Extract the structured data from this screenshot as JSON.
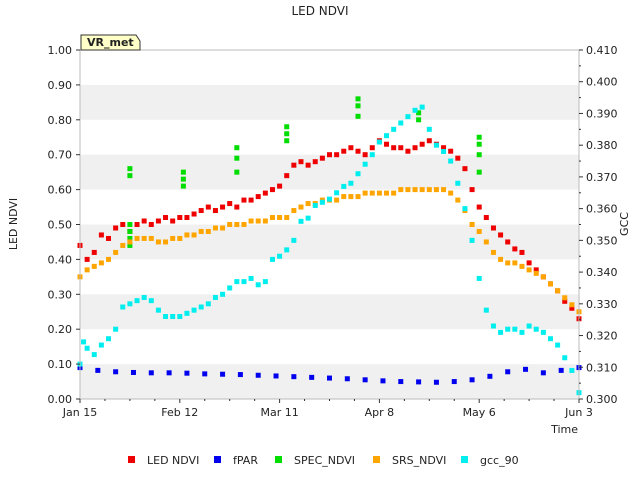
{
  "chart_data": {
    "type": "scatter",
    "title": "LED NDVI",
    "xlabel": "Time",
    "ylabel_left": "LED NDVI",
    "ylabel_right": "GCC",
    "site_label": "VR_met",
    "ylim_left": [
      0.0,
      1.0
    ],
    "ylim_right": [
      0.3,
      0.41
    ],
    "yticks_left": [
      "0.00",
      "0.10",
      "0.20",
      "0.30",
      "0.40",
      "0.50",
      "0.60",
      "0.70",
      "0.80",
      "0.90",
      "1.00"
    ],
    "yticks_right": [
      "0.300",
      "0.310",
      "0.320",
      "0.330",
      "0.340",
      "0.350",
      "0.360",
      "0.370",
      "0.380",
      "0.390",
      "0.400",
      "0.410"
    ],
    "x_range_days": [
      0,
      140
    ],
    "xticks": [
      {
        "label": "Jan 15",
        "day": 0
      },
      {
        "label": "Feb 12",
        "day": 28
      },
      {
        "label": "Mar 11",
        "day": 56
      },
      {
        "label": "Apr 8",
        "day": 84
      },
      {
        "label": "May 6",
        "day": 112
      },
      {
        "label": "Jun 3",
        "day": 140
      }
    ],
    "grid": "alternating horizontal bands",
    "legend_position": "bottom",
    "series": [
      {
        "name": "LED NDVI",
        "color": "#ee0000",
        "axis": "left",
        "points": [
          [
            0,
            0.44
          ],
          [
            2,
            0.4
          ],
          [
            4,
            0.42
          ],
          [
            6,
            0.47
          ],
          [
            8,
            0.46
          ],
          [
            10,
            0.49
          ],
          [
            12,
            0.5
          ],
          [
            14,
            0.48
          ],
          [
            16,
            0.5
          ],
          [
            18,
            0.51
          ],
          [
            20,
            0.5
          ],
          [
            22,
            0.51
          ],
          [
            24,
            0.52
          ],
          [
            26,
            0.51
          ],
          [
            28,
            0.52
          ],
          [
            30,
            0.52
          ],
          [
            32,
            0.53
          ],
          [
            34,
            0.54
          ],
          [
            36,
            0.55
          ],
          [
            38,
            0.54
          ],
          [
            40,
            0.55
          ],
          [
            42,
            0.56
          ],
          [
            44,
            0.55
          ],
          [
            46,
            0.57
          ],
          [
            48,
            0.57
          ],
          [
            50,
            0.58
          ],
          [
            52,
            0.59
          ],
          [
            54,
            0.6
          ],
          [
            56,
            0.61
          ],
          [
            58,
            0.64
          ],
          [
            60,
            0.67
          ],
          [
            62,
            0.68
          ],
          [
            64,
            0.67
          ],
          [
            66,
            0.68
          ],
          [
            68,
            0.69
          ],
          [
            70,
            0.7
          ],
          [
            72,
            0.7
          ],
          [
            74,
            0.71
          ],
          [
            76,
            0.72
          ],
          [
            78,
            0.71
          ],
          [
            80,
            0.7
          ],
          [
            82,
            0.72
          ],
          [
            84,
            0.74
          ],
          [
            86,
            0.73
          ],
          [
            88,
            0.72
          ],
          [
            90,
            0.72
          ],
          [
            92,
            0.71
          ],
          [
            94,
            0.72
          ],
          [
            96,
            0.73
          ],
          [
            98,
            0.74
          ],
          [
            100,
            0.73
          ],
          [
            102,
            0.72
          ],
          [
            104,
            0.71
          ],
          [
            106,
            0.69
          ],
          [
            108,
            0.66
          ],
          [
            110,
            0.6
          ],
          [
            112,
            0.55
          ],
          [
            114,
            0.52
          ],
          [
            116,
            0.49
          ],
          [
            118,
            0.47
          ],
          [
            120,
            0.45
          ],
          [
            122,
            0.43
          ],
          [
            124,
            0.42
          ],
          [
            126,
            0.39
          ],
          [
            128,
            0.37
          ],
          [
            130,
            0.35
          ],
          [
            132,
            0.33
          ],
          [
            134,
            0.31
          ],
          [
            136,
            0.28
          ],
          [
            138,
            0.26
          ],
          [
            140,
            0.23
          ]
        ]
      },
      {
        "name": "fPAR",
        "color": "#0000ee",
        "axis": "left",
        "points": [
          [
            0,
            0.09
          ],
          [
            5,
            0.082
          ],
          [
            10,
            0.078
          ],
          [
            15,
            0.076
          ],
          [
            20,
            0.075
          ],
          [
            25,
            0.075
          ],
          [
            30,
            0.074
          ],
          [
            35,
            0.072
          ],
          [
            40,
            0.071
          ],
          [
            45,
            0.07
          ],
          [
            50,
            0.068
          ],
          [
            55,
            0.066
          ],
          [
            60,
            0.064
          ],
          [
            65,
            0.062
          ],
          [
            70,
            0.06
          ],
          [
            75,
            0.058
          ],
          [
            80,
            0.055
          ],
          [
            85,
            0.052
          ],
          [
            90,
            0.05
          ],
          [
            95,
            0.049
          ],
          [
            100,
            0.048
          ],
          [
            105,
            0.05
          ],
          [
            110,
            0.055
          ],
          [
            115,
            0.065
          ],
          [
            120,
            0.078
          ],
          [
            125,
            0.085
          ],
          [
            130,
            0.075
          ],
          [
            135,
            0.082
          ],
          [
            140,
            0.09
          ]
        ]
      },
      {
        "name": "SPEC_NDVI",
        "color": "#00dd00",
        "axis": "left",
        "points": [
          [
            14,
            0.46
          ],
          [
            14,
            0.5
          ],
          [
            14,
            0.44
          ],
          [
            14,
            0.48
          ],
          [
            14,
            0.64
          ],
          [
            14,
            0.66
          ],
          [
            29,
            0.61
          ],
          [
            29,
            0.63
          ],
          [
            29,
            0.65
          ],
          [
            44,
            0.65
          ],
          [
            44,
            0.69
          ],
          [
            44,
            0.72
          ],
          [
            58,
            0.74
          ],
          [
            58,
            0.76
          ],
          [
            58,
            0.78
          ],
          [
            78,
            0.81
          ],
          [
            78,
            0.84
          ],
          [
            78,
            0.86
          ],
          [
            95,
            0.8
          ],
          [
            95,
            0.82
          ],
          [
            112,
            0.65
          ],
          [
            112,
            0.7
          ],
          [
            112,
            0.73
          ],
          [
            112,
            0.75
          ]
        ]
      },
      {
        "name": "SRS_NDVI",
        "color": "#ffa500",
        "axis": "left",
        "points": [
          [
            0,
            0.35
          ],
          [
            2,
            0.37
          ],
          [
            4,
            0.38
          ],
          [
            6,
            0.39
          ],
          [
            8,
            0.4
          ],
          [
            10,
            0.42
          ],
          [
            12,
            0.44
          ],
          [
            14,
            0.45
          ],
          [
            16,
            0.46
          ],
          [
            18,
            0.46
          ],
          [
            20,
            0.46
          ],
          [
            22,
            0.45
          ],
          [
            24,
            0.45
          ],
          [
            26,
            0.46
          ],
          [
            28,
            0.46
          ],
          [
            30,
            0.47
          ],
          [
            32,
            0.47
          ],
          [
            34,
            0.48
          ],
          [
            36,
            0.48
          ],
          [
            38,
            0.49
          ],
          [
            40,
            0.49
          ],
          [
            42,
            0.5
          ],
          [
            44,
            0.5
          ],
          [
            46,
            0.5
          ],
          [
            48,
            0.51
          ],
          [
            50,
            0.51
          ],
          [
            52,
            0.51
          ],
          [
            54,
            0.52
          ],
          [
            56,
            0.52
          ],
          [
            58,
            0.52
          ],
          [
            60,
            0.54
          ],
          [
            62,
            0.55
          ],
          [
            64,
            0.56
          ],
          [
            66,
            0.56
          ],
          [
            68,
            0.57
          ],
          [
            70,
            0.57
          ],
          [
            72,
            0.57
          ],
          [
            74,
            0.58
          ],
          [
            76,
            0.58
          ],
          [
            78,
            0.58
          ],
          [
            80,
            0.59
          ],
          [
            82,
            0.59
          ],
          [
            84,
            0.59
          ],
          [
            86,
            0.59
          ],
          [
            88,
            0.59
          ],
          [
            90,
            0.6
          ],
          [
            92,
            0.6
          ],
          [
            94,
            0.6
          ],
          [
            96,
            0.6
          ],
          [
            98,
            0.6
          ],
          [
            100,
            0.6
          ],
          [
            102,
            0.6
          ],
          [
            104,
            0.59
          ],
          [
            106,
            0.57
          ],
          [
            108,
            0.54
          ],
          [
            110,
            0.5
          ],
          [
            112,
            0.48
          ],
          [
            114,
            0.45
          ],
          [
            116,
            0.42
          ],
          [
            118,
            0.4
          ],
          [
            120,
            0.39
          ],
          [
            122,
            0.39
          ],
          [
            124,
            0.38
          ],
          [
            126,
            0.37
          ],
          [
            128,
            0.36
          ],
          [
            130,
            0.35
          ],
          [
            132,
            0.33
          ],
          [
            134,
            0.31
          ],
          [
            136,
            0.29
          ],
          [
            138,
            0.27
          ],
          [
            140,
            0.25
          ]
        ]
      },
      {
        "name": "gcc_90",
        "color": "#00eeee",
        "axis": "right",
        "points": [
          [
            0,
            0.311
          ],
          [
            1,
            0.318
          ],
          [
            2,
            0.316
          ],
          [
            4,
            0.314
          ],
          [
            6,
            0.317
          ],
          [
            8,
            0.319
          ],
          [
            10,
            0.322
          ],
          [
            12,
            0.329
          ],
          [
            14,
            0.33
          ],
          [
            16,
            0.331
          ],
          [
            18,
            0.332
          ],
          [
            20,
            0.331
          ],
          [
            22,
            0.328
          ],
          [
            24,
            0.326
          ],
          [
            26,
            0.326
          ],
          [
            28,
            0.326
          ],
          [
            30,
            0.327
          ],
          [
            32,
            0.328
          ],
          [
            34,
            0.329
          ],
          [
            36,
            0.33
          ],
          [
            38,
            0.332
          ],
          [
            40,
            0.333
          ],
          [
            42,
            0.335
          ],
          [
            44,
            0.337
          ],
          [
            46,
            0.337
          ],
          [
            48,
            0.338
          ],
          [
            50,
            0.336
          ],
          [
            52,
            0.337
          ],
          [
            54,
            0.344
          ],
          [
            56,
            0.345
          ],
          [
            58,
            0.347
          ],
          [
            60,
            0.35
          ],
          [
            62,
            0.356
          ],
          [
            64,
            0.357
          ],
          [
            66,
            0.361
          ],
          [
            68,
            0.362
          ],
          [
            70,
            0.363
          ],
          [
            72,
            0.365
          ],
          [
            74,
            0.367
          ],
          [
            76,
            0.368
          ],
          [
            78,
            0.371
          ],
          [
            80,
            0.374
          ],
          [
            82,
            0.377
          ],
          [
            84,
            0.381
          ],
          [
            86,
            0.383
          ],
          [
            88,
            0.385
          ],
          [
            90,
            0.387
          ],
          [
            92,
            0.389
          ],
          [
            94,
            0.391
          ],
          [
            96,
            0.392
          ],
          [
            98,
            0.385
          ],
          [
            100,
            0.38
          ],
          [
            102,
            0.378
          ],
          [
            104,
            0.375
          ],
          [
            106,
            0.368
          ],
          [
            108,
            0.36
          ],
          [
            110,
            0.35
          ],
          [
            112,
            0.338
          ],
          [
            114,
            0.328
          ],
          [
            116,
            0.323
          ],
          [
            118,
            0.321
          ],
          [
            120,
            0.322
          ],
          [
            122,
            0.322
          ],
          [
            124,
            0.321
          ],
          [
            126,
            0.323
          ],
          [
            128,
            0.322
          ],
          [
            130,
            0.321
          ],
          [
            132,
            0.319
          ],
          [
            134,
            0.317
          ],
          [
            136,
            0.313
          ],
          [
            138,
            0.309
          ],
          [
            140,
            0.302
          ]
        ]
      }
    ]
  }
}
